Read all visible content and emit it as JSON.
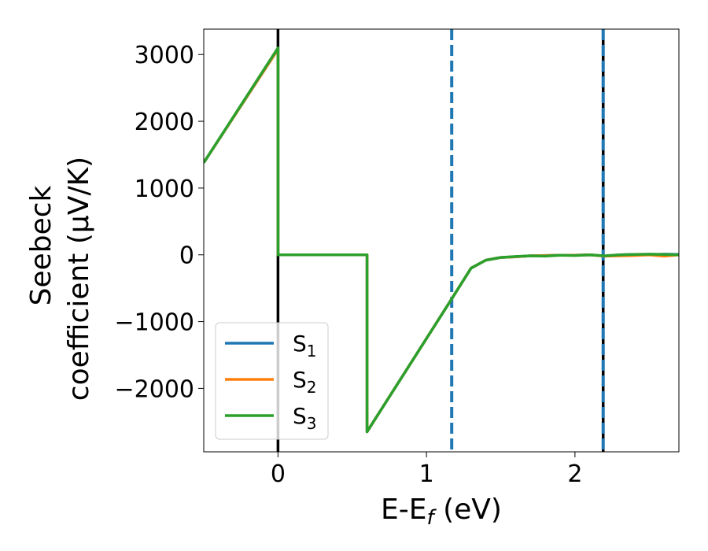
{
  "chart_data": {
    "type": "line",
    "xlabel": "E-E",
    "xlabel_sub": "f",
    "xlabel_unit": " (eV)",
    "ylabel_line1": "Seebeck",
    "ylabel_line2": "coefficient  (μV/K)",
    "xlim": [
      -0.5,
      2.7
    ],
    "ylim": [
      -2950,
      3380
    ],
    "xticks": [
      0,
      1,
      2
    ],
    "xtick_labels": [
      "0",
      "1",
      "2"
    ],
    "yticks": [
      -2000,
      -1000,
      0,
      1000,
      2000,
      3000
    ],
    "ytick_labels": [
      "−2000",
      "−1000",
      "0",
      "1000",
      "2000",
      "3000"
    ],
    "grid": false,
    "legend_placement": "lower-left",
    "series": [
      {
        "name": "S",
        "sub": "1",
        "color": "#1f77b4",
        "x": [
          -0.5,
          0.0,
          0.0,
          0.6,
          0.6,
          1.15,
          1.3,
          1.4,
          1.5,
          1.6,
          1.7,
          1.8,
          1.9,
          2.0,
          2.1,
          2.2,
          2.3,
          2.4,
          2.5,
          2.6,
          2.7
        ],
        "y": [
          1380,
          3080,
          0,
          0,
          -2650,
          -730,
          -200,
          -80,
          -40,
          -30,
          -15,
          -10,
          -5,
          -5,
          0,
          -20,
          0,
          5,
          0,
          10,
          5
        ]
      },
      {
        "name": "S",
        "sub": "2",
        "color": "#ff7f0e",
        "x": [
          -0.5,
          0.0,
          0.0,
          0.6,
          0.6,
          1.15,
          1.3,
          1.4,
          1.5,
          1.6,
          1.7,
          1.8,
          1.9,
          2.0,
          2.1,
          2.2,
          2.3,
          2.4,
          2.5,
          2.6,
          2.7
        ],
        "y": [
          1380,
          3080,
          0,
          0,
          -2650,
          -730,
          -200,
          -80,
          -40,
          -30,
          -15,
          -10,
          -5,
          -5,
          0,
          -20,
          -15,
          -10,
          0,
          -20,
          0
        ]
      },
      {
        "name": "S",
        "sub": "3",
        "color": "#2ca02c",
        "x": [
          -0.5,
          0.0,
          0.0,
          0.6,
          0.6,
          1.15,
          1.3,
          1.4,
          1.5,
          1.6,
          1.7,
          1.8,
          1.9,
          2.0,
          2.1,
          2.2,
          2.3,
          2.4,
          2.5,
          2.6,
          2.7
        ],
        "y": [
          1380,
          3100,
          0,
          0,
          -2650,
          -730,
          -200,
          -80,
          -40,
          -25,
          -15,
          -20,
          -5,
          -10,
          0,
          -15,
          0,
          5,
          10,
          5,
          0
        ]
      }
    ],
    "vlines": [
      {
        "x": 0.0,
        "color": "#000000",
        "style": "solid"
      },
      {
        "x": 1.17,
        "color": "#1f77b4",
        "style": "dashed"
      },
      {
        "x": 2.19,
        "color": "#000000",
        "style": "solid"
      },
      {
        "x": 2.19,
        "color": "#1f77b4",
        "style": "dashed"
      }
    ]
  }
}
